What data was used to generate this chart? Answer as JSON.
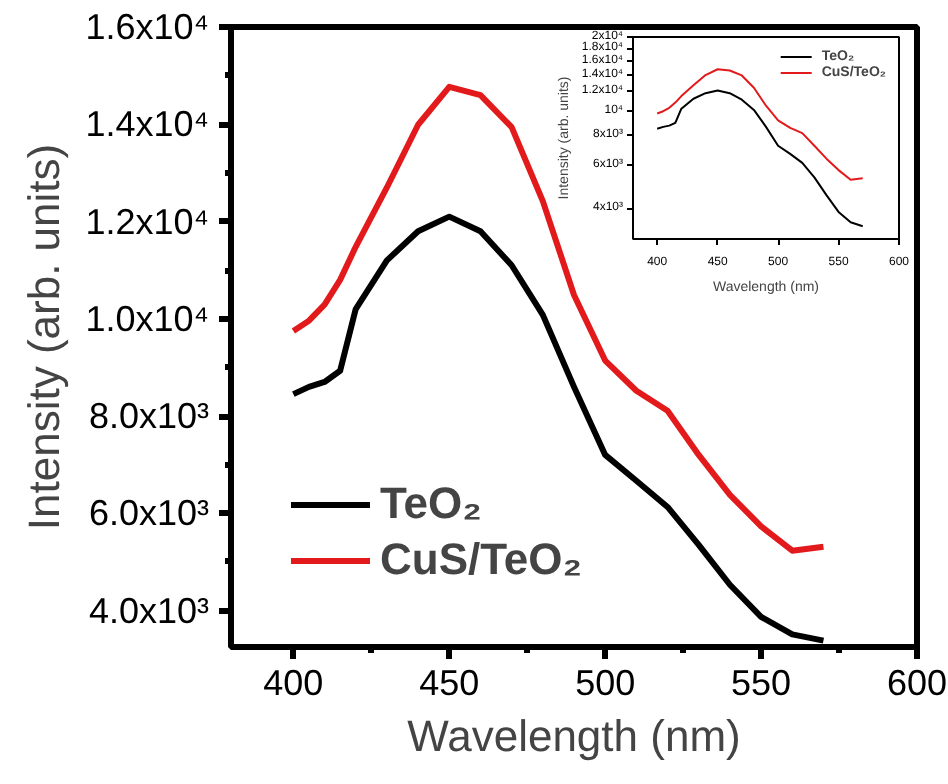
{
  "chart_data": [
    {
      "type": "line",
      "xlabel": "Wavelength (nm)",
      "ylabel": "Intensity (arb. units)",
      "x": [
        400,
        405,
        410,
        415,
        420,
        430,
        440,
        450,
        460,
        470,
        480,
        490,
        500,
        510,
        520,
        530,
        540,
        550,
        560,
        570
      ],
      "series": [
        {
          "name": "TeO₂",
          "color": "#000000",
          "values": [
            8450,
            8600,
            8700,
            8930,
            10200,
            11200,
            11800,
            12100,
            11800,
            11100,
            10080,
            8600,
            7200,
            6670,
            6130,
            5350,
            4530,
            3870,
            3510,
            3380
          ]
        },
        {
          "name": "CuS/TeO₂",
          "color": "#e31a1c",
          "values": [
            9750,
            9960,
            10290,
            10800,
            11480,
            12700,
            13990,
            14770,
            14600,
            13940,
            12420,
            10490,
            9140,
            8520,
            8110,
            7200,
            6380,
            5730,
            5230,
            5310
          ]
        }
      ],
      "xlim": [
        380,
        600
      ],
      "ylim": [
        3250,
        16000
      ],
      "xticks": [
        400,
        {
          "value": 425,
          "label": null
        },
        450,
        {
          "value": 475,
          "label": null
        },
        500,
        {
          "value": 525,
          "label": null
        },
        550,
        {
          "value": 575,
          "label": null
        },
        600
      ],
      "yticks": [
        {
          "value": 4000,
          "label": "4.0x10³"
        },
        {
          "value": 5000,
          "label": null
        },
        {
          "value": 6000,
          "label": "6.0x10³"
        },
        {
          "value": 7000,
          "label": null
        },
        {
          "value": 8000,
          "label": "8.0x10³"
        },
        {
          "value": 9000,
          "label": null
        },
        {
          "value": 10000,
          "label": "1.0x10⁴"
        },
        {
          "value": 11000,
          "label": null
        },
        {
          "value": 12000,
          "label": "1.2x10⁴"
        },
        {
          "value": 13000,
          "label": null
        },
        {
          "value": 14000,
          "label": "1.4x10⁴"
        },
        {
          "value": 15000,
          "label": null
        },
        {
          "value": 16000,
          "label": "1.6x10⁴"
        }
      ],
      "legend": "bottom left",
      "grid": false,
      "line_style": "solid",
      "marker": "none"
    },
    {
      "type": "line",
      "xlabel": "Wavelength (nm)",
      "ylabel": "Intensity (arb. units)",
      "x": [
        400,
        405,
        410,
        415,
        420,
        430,
        440,
        450,
        460,
        470,
        480,
        490,
        500,
        510,
        520,
        530,
        540,
        550,
        560,
        570
      ],
      "series": [
        {
          "name": "TeO₂",
          "color": "#000000",
          "values": [
            8450,
            8600,
            8700,
            8930,
            10200,
            11200,
            11800,
            12100,
            11800,
            11100,
            10080,
            8600,
            7200,
            6670,
            6130,
            5350,
            4530,
            3870,
            3510,
            3380
          ]
        },
        {
          "name": "CuS/TeO₂",
          "color": "#e31a1c",
          "values": [
            9750,
            9960,
            10290,
            10800,
            11480,
            12700,
            13990,
            14770,
            14600,
            13940,
            12420,
            10490,
            9140,
            8520,
            8110,
            7200,
            6380,
            5730,
            5230,
            5310
          ]
        }
      ],
      "xlim": [
        380,
        600
      ],
      "ylim": [
        3000,
        20000
      ],
      "log": "y",
      "xticks": [
        400,
        450,
        500,
        550,
        600
      ],
      "yticks": [
        {
          "value": 4000,
          "label": "4x10³"
        },
        {
          "value": 6000,
          "label": "6x10³"
        },
        {
          "value": 8000,
          "label": "8x10³"
        },
        {
          "value": 10000,
          "label": "10⁴"
        },
        {
          "value": 12000,
          "label": "1.2x10⁴"
        },
        {
          "value": 14000,
          "label": "1.4x10⁴"
        },
        {
          "value": 16000,
          "label": "1.6x10⁴"
        },
        {
          "value": 18000,
          "label": "1.8x10⁴"
        },
        {
          "value": 20000,
          "label": "2x10⁴"
        }
      ],
      "legend": "top right",
      "grid": false,
      "line_style": "solid",
      "marker": "none"
    }
  ]
}
